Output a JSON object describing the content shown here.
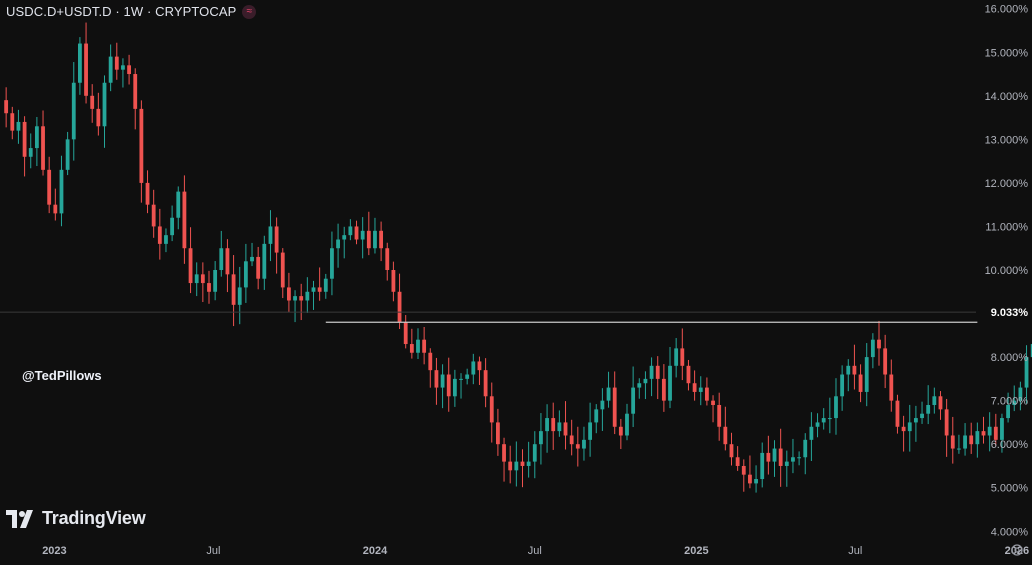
{
  "header": {
    "title": "USDC.D+USDT.D · 1W · CRYPTOCAP",
    "badge_icon": "wave-icon"
  },
  "watermark": {
    "handle": "@TedPillows",
    "brand": "TradingView",
    "brand_icon": "tradingview-logo-icon"
  },
  "colors": {
    "background": "#0f0f0f",
    "up": "#26a69a",
    "down": "#ef5350",
    "line": "#c9c9c9",
    "axis_text": "#b2b5be"
  },
  "chart_data": {
    "type": "candlestick",
    "symbol": "USDC.D+USDT.D",
    "interval": "1W",
    "exchange": "CRYPTOCAP",
    "y_axis": {
      "unit": "%",
      "range": [
        3.8,
        16.2
      ],
      "ticks": [
        "16.000%",
        "15.000%",
        "14.000%",
        "13.000%",
        "12.000%",
        "11.000%",
        "10.000%",
        "9.033%",
        "8.000%",
        "7.000%",
        "6.000%",
        "5.000%",
        "4.000%"
      ],
      "last_price": 9.033,
      "last_price_label": "9.033%"
    },
    "x_axis": {
      "range": [
        "2022-10-31",
        "2025-12-31"
      ],
      "ticks": [
        {
          "date": "2023-01-01",
          "label": "2023"
        },
        {
          "date": "2023-07-01",
          "label": "Jul"
        },
        {
          "date": "2024-01-01",
          "label": "2024"
        },
        {
          "date": "2024-07-01",
          "label": "Jul"
        },
        {
          "date": "2025-01-01",
          "label": "2025"
        },
        {
          "date": "2025-07-01",
          "label": "Jul"
        },
        {
          "date": "2026-01-01",
          "label": "2026"
        }
      ]
    },
    "horizontal_line": {
      "value": 8.8,
      "from": "2023-11-06",
      "to": "2025-11-17"
    },
    "start": "2022-11-07",
    "closes": [
      13.6,
      13.2,
      13.4,
      12.6,
      12.8,
      13.3,
      12.3,
      11.5,
      11.3,
      12.3,
      13.0,
      14.3,
      15.2,
      14.0,
      13.7,
      13.3,
      14.3,
      14.9,
      14.6,
      14.7,
      14.5,
      13.7,
      12.0,
      11.5,
      11.0,
      10.6,
      10.8,
      11.2,
      11.8,
      10.5,
      9.7,
      9.9,
      9.7,
      9.5,
      10.0,
      10.5,
      9.9,
      9.2,
      9.6,
      10.2,
      10.3,
      9.8,
      10.6,
      11.0,
      10.4,
      9.6,
      9.3,
      9.4,
      9.3,
      9.5,
      9.6,
      9.5,
      9.8,
      10.5,
      10.7,
      10.8,
      11.0,
      10.7,
      10.9,
      10.5,
      10.9,
      10.5,
      10.0,
      9.5,
      8.8,
      8.3,
      8.1,
      8.4,
      8.1,
      7.7,
      7.3,
      7.6,
      7.1,
      7.5,
      7.5,
      7.6,
      7.9,
      7.7,
      7.1,
      6.5,
      6.0,
      5.6,
      5.4,
      5.6,
      5.5,
      5.6,
      6.0,
      6.3,
      6.6,
      6.3,
      6.5,
      6.2,
      6.0,
      5.9,
      6.1,
      6.5,
      6.8,
      7.0,
      7.3,
      6.4,
      6.2,
      6.7,
      7.3,
      7.4,
      7.5,
      7.8,
      7.5,
      7.0,
      7.8,
      8.2,
      7.8,
      7.4,
      7.2,
      7.3,
      7.0,
      6.9,
      6.4,
      6.0,
      5.7,
      5.5,
      5.3,
      5.1,
      5.2,
      5.8,
      5.6,
      5.9,
      5.5,
      5.6,
      5.7,
      5.7,
      6.1,
      6.4,
      6.5,
      6.6,
      6.6,
      7.1,
      7.6,
      7.8,
      7.6,
      7.2,
      8.0,
      8.4,
      8.2,
      7.6,
      7.0,
      6.4,
      6.3,
      6.5,
      6.6,
      6.7,
      6.9,
      7.1,
      6.8,
      6.2,
      5.9,
      5.9,
      6.2,
      6.0,
      6.3,
      6.2,
      6.4,
      6.1,
      6.6,
      6.9,
      7.0,
      7.3,
      8.0,
      8.3,
      9.033
    ]
  }
}
